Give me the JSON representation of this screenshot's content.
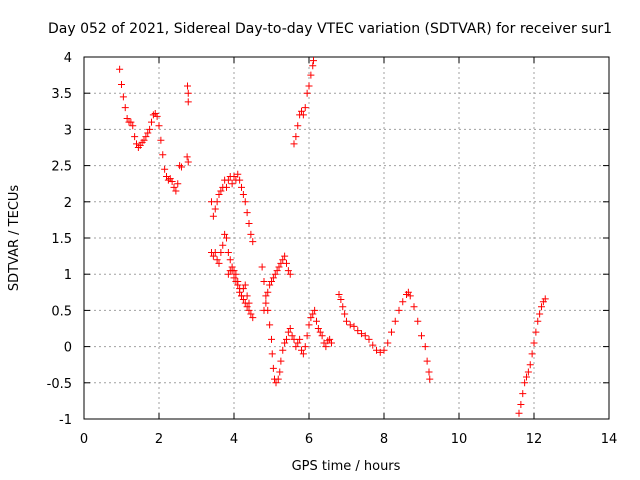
{
  "chart_data": {
    "type": "scatter",
    "title": "Day 052 of 2021, Sidereal Day-to-day VTEC variation (SDTVAR) for receiver sur1",
    "xlabel": "GPS time / hours",
    "ylabel": "SDTVAR / TECUs",
    "xlim": [
      0,
      14
    ],
    "ylim": [
      -1,
      4
    ],
    "xticks": [
      0,
      2,
      4,
      6,
      8,
      10,
      12,
      14
    ],
    "xtick_labels": [
      "0",
      "2",
      "4",
      "6",
      "8",
      "10",
      "12",
      "14"
    ],
    "yticks": [
      -1,
      -0.5,
      0,
      0.5,
      1,
      1.5,
      2,
      2.5,
      3,
      3.5,
      4
    ],
    "ytick_labels": [
      "-1",
      "-0.5",
      "0",
      "0.5",
      "1",
      "1.5",
      "2",
      "2.5",
      "3",
      "3.5",
      "4"
    ],
    "grid": true,
    "marker": "+",
    "marker_color": "#ff0000",
    "series": [
      {
        "name": "SDTVAR",
        "points": [
          [
            0.95,
            3.83
          ],
          [
            1.0,
            3.62
          ],
          [
            1.05,
            3.45
          ],
          [
            1.1,
            3.3
          ],
          [
            1.15,
            3.15
          ],
          [
            1.2,
            3.1
          ],
          [
            1.25,
            3.1
          ],
          [
            1.3,
            3.05
          ],
          [
            1.35,
            2.9
          ],
          [
            1.4,
            2.8
          ],
          [
            1.45,
            2.75
          ],
          [
            1.5,
            2.78
          ],
          [
            1.55,
            2.82
          ],
          [
            1.6,
            2.85
          ],
          [
            1.65,
            2.9
          ],
          [
            1.7,
            2.95
          ],
          [
            1.75,
            3.0
          ],
          [
            1.8,
            3.1
          ],
          [
            1.85,
            3.2
          ],
          [
            1.9,
            3.22
          ],
          [
            1.95,
            3.18
          ],
          [
            2.0,
            3.05
          ],
          [
            2.05,
            2.85
          ],
          [
            2.1,
            2.65
          ],
          [
            2.15,
            2.45
          ],
          [
            2.2,
            2.35
          ],
          [
            2.25,
            2.3
          ],
          [
            2.3,
            2.32
          ],
          [
            2.35,
            2.28
          ],
          [
            2.4,
            2.2
          ],
          [
            2.45,
            2.15
          ],
          [
            2.5,
            2.25
          ],
          [
            2.55,
            2.5
          ],
          [
            2.6,
            2.48
          ],
          [
            2.75,
            2.62
          ],
          [
            2.78,
            2.55
          ],
          [
            2.76,
            3.6
          ],
          [
            2.78,
            3.5
          ],
          [
            2.78,
            3.38
          ],
          [
            3.4,
            2.0
          ],
          [
            3.45,
            1.8
          ],
          [
            3.5,
            1.9
          ],
          [
            3.55,
            2.0
          ],
          [
            3.6,
            2.1
          ],
          [
            3.65,
            2.15
          ],
          [
            3.7,
            2.2
          ],
          [
            3.75,
            2.3
          ],
          [
            3.8,
            2.2
          ],
          [
            3.85,
            2.3
          ],
          [
            3.9,
            2.35
          ],
          [
            3.95,
            2.25
          ],
          [
            4.0,
            2.35
          ],
          [
            4.05,
            2.3
          ],
          [
            4.1,
            2.38
          ],
          [
            4.15,
            2.3
          ],
          [
            4.2,
            2.2
          ],
          [
            4.25,
            2.1
          ],
          [
            4.3,
            2.0
          ],
          [
            4.35,
            1.85
          ],
          [
            4.4,
            1.7
          ],
          [
            4.45,
            1.55
          ],
          [
            4.5,
            1.45
          ],
          [
            3.4,
            1.3
          ],
          [
            3.45,
            1.25
          ],
          [
            3.5,
            1.3
          ],
          [
            3.55,
            1.2
          ],
          [
            3.6,
            1.15
          ],
          [
            3.65,
            1.3
          ],
          [
            3.7,
            1.4
          ],
          [
            3.75,
            1.55
          ],
          [
            3.8,
            1.5
          ],
          [
            3.85,
            1.3
          ],
          [
            3.9,
            1.2
          ],
          [
            3.95,
            1.05
          ],
          [
            4.0,
            0.95
          ],
          [
            4.05,
            0.9
          ],
          [
            4.1,
            0.85
          ],
          [
            4.15,
            0.75
          ],
          [
            4.2,
            0.7
          ],
          [
            4.25,
            0.65
          ],
          [
            4.3,
            0.6
          ],
          [
            4.35,
            0.55
          ],
          [
            4.4,
            0.5
          ],
          [
            4.45,
            0.45
          ],
          [
            4.5,
            0.4
          ],
          [
            3.85,
            1.0
          ],
          [
            3.9,
            1.05
          ],
          [
            3.95,
            1.1
          ],
          [
            4.0,
            1.05
          ],
          [
            4.05,
            1.0
          ],
          [
            4.1,
            0.9
          ],
          [
            4.15,
            0.8
          ],
          [
            4.2,
            0.7
          ],
          [
            4.25,
            0.8
          ],
          [
            4.3,
            0.85
          ],
          [
            4.35,
            0.7
          ],
          [
            4.4,
            0.6
          ],
          [
            4.75,
            1.1
          ],
          [
            4.8,
            0.9
          ],
          [
            4.85,
            0.7
          ],
          [
            4.9,
            0.5
          ],
          [
            4.95,
            0.3
          ],
          [
            5.0,
            0.1
          ],
          [
            5.02,
            -0.1
          ],
          [
            5.05,
            -0.3
          ],
          [
            5.08,
            -0.45
          ],
          [
            5.12,
            -0.5
          ],
          [
            5.18,
            -0.45
          ],
          [
            5.22,
            -0.35
          ],
          [
            5.25,
            -0.2
          ],
          [
            5.3,
            -0.05
          ],
          [
            5.35,
            0.05
          ],
          [
            5.4,
            0.1
          ],
          [
            5.45,
            0.2
          ],
          [
            5.5,
            0.25
          ],
          [
            5.55,
            0.15
          ],
          [
            5.6,
            0.1
          ],
          [
            5.65,
            0.0
          ],
          [
            5.7,
            0.05
          ],
          [
            5.75,
            0.1
          ],
          [
            5.8,
            -0.05
          ],
          [
            5.85,
            -0.1
          ],
          [
            5.9,
            0.0
          ],
          [
            5.95,
            0.15
          ],
          [
            6.0,
            0.3
          ],
          [
            6.05,
            0.4
          ],
          [
            6.1,
            0.45
          ],
          [
            6.15,
            0.5
          ],
          [
            6.2,
            0.35
          ],
          [
            6.25,
            0.25
          ],
          [
            6.3,
            0.2
          ],
          [
            6.35,
            0.15
          ],
          [
            6.4,
            0.05
          ],
          [
            6.45,
            0.0
          ],
          [
            6.5,
            0.08
          ],
          [
            6.55,
            0.1
          ],
          [
            6.6,
            0.05
          ],
          [
            4.8,
            0.5
          ],
          [
            4.85,
            0.6
          ],
          [
            4.9,
            0.75
          ],
          [
            4.95,
            0.85
          ],
          [
            5.0,
            0.9
          ],
          [
            5.05,
            0.95
          ],
          [
            5.1,
            1.0
          ],
          [
            5.15,
            1.05
          ],
          [
            5.2,
            1.1
          ],
          [
            5.25,
            1.15
          ],
          [
            5.3,
            1.2
          ],
          [
            5.35,
            1.25
          ],
          [
            5.4,
            1.15
          ],
          [
            5.45,
            1.05
          ],
          [
            5.5,
            1.0
          ],
          [
            5.6,
            2.8
          ],
          [
            5.65,
            2.9
          ],
          [
            5.7,
            3.05
          ],
          [
            5.75,
            3.2
          ],
          [
            5.8,
            3.25
          ],
          [
            5.85,
            3.2
          ],
          [
            5.9,
            3.3
          ],
          [
            5.95,
            3.5
          ],
          [
            6.0,
            3.6
          ],
          [
            6.05,
            3.75
          ],
          [
            6.1,
            3.88
          ],
          [
            6.12,
            3.95
          ],
          [
            6.8,
            0.72
          ],
          [
            6.85,
            0.65
          ],
          [
            6.9,
            0.55
          ],
          [
            6.95,
            0.45
          ],
          [
            7.0,
            0.35
          ],
          [
            7.1,
            0.3
          ],
          [
            7.2,
            0.28
          ],
          [
            7.3,
            0.22
          ],
          [
            7.4,
            0.18
          ],
          [
            7.5,
            0.15
          ],
          [
            7.6,
            0.1
          ],
          [
            7.7,
            0.02
          ],
          [
            7.8,
            -0.05
          ],
          [
            7.9,
            -0.08
          ],
          [
            8.0,
            -0.05
          ],
          [
            8.1,
            0.05
          ],
          [
            8.2,
            0.2
          ],
          [
            8.3,
            0.35
          ],
          [
            8.4,
            0.5
          ],
          [
            8.5,
            0.62
          ],
          [
            8.6,
            0.72
          ],
          [
            8.65,
            0.75
          ],
          [
            8.7,
            0.7
          ],
          [
            8.8,
            0.55
          ],
          [
            8.9,
            0.35
          ],
          [
            9.0,
            0.15
          ],
          [
            9.1,
            0.0
          ],
          [
            9.15,
            -0.2
          ],
          [
            9.2,
            -0.35
          ],
          [
            9.22,
            -0.45
          ],
          [
            11.6,
            -0.92
          ],
          [
            11.65,
            -0.8
          ],
          [
            11.7,
            -0.65
          ],
          [
            11.75,
            -0.5
          ],
          [
            11.8,
            -0.42
          ],
          [
            11.85,
            -0.35
          ],
          [
            11.9,
            -0.25
          ],
          [
            11.95,
            -0.1
          ],
          [
            12.0,
            0.05
          ],
          [
            12.05,
            0.2
          ],
          [
            12.1,
            0.35
          ],
          [
            12.15,
            0.45
          ],
          [
            12.2,
            0.55
          ],
          [
            12.25,
            0.62
          ],
          [
            12.3,
            0.66
          ]
        ]
      }
    ]
  }
}
